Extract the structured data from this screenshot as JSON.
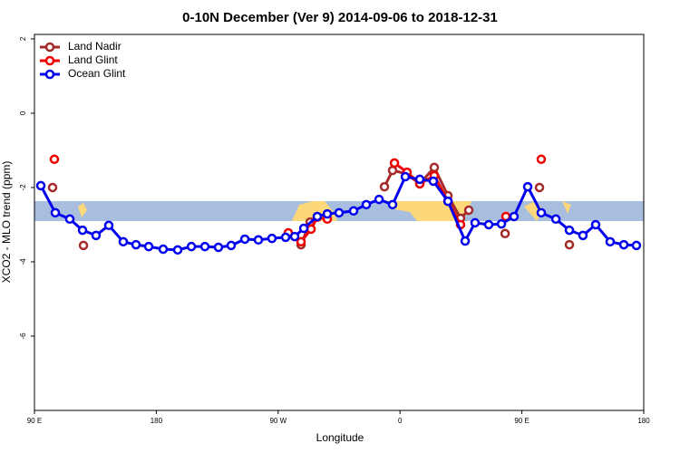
{
  "chart_data": {
    "type": "line",
    "title": "0-10N December (Ver 9)   2014-09-06 to 2018-12-31",
    "xlabel": "Longitude",
    "ylabel": "XCO2 - MLO trend (ppm)",
    "xlim": [
      90,
      540
    ],
    "ylim": [
      -8,
      2.12
    ],
    "xticks": [
      {
        "value": 90,
        "label": "90 E"
      },
      {
        "value": 180,
        "label": "180"
      },
      {
        "value": 270,
        "label": "90 W"
      },
      {
        "value": 360,
        "label": "0"
      },
      {
        "value": 450,
        "label": "90 E"
      },
      {
        "value": 540,
        "label": "180"
      }
    ],
    "yticks": [
      2,
      0,
      -2,
      -4,
      -6
    ],
    "legend": "top-left",
    "series": [
      {
        "name": "Land Nadir",
        "color": "#a52a2a",
        "x": [
          103.4,
          null,
          126.2,
          null,
          286.9,
          293.6,
          null,
          348.5,
          354.5,
          364.6,
          374.6,
          385.3,
          395.4,
          404.7,
          410.8,
          null,
          437.6,
          null,
          463,
          null,
          485.1
        ],
        "values": [
          -2.0,
          null,
          -3.56,
          null,
          -3.54,
          -2.93,
          null,
          -1.98,
          -1.54,
          -1.63,
          -1.9,
          -1.46,
          -2.22,
          -2.83,
          -2.61,
          null,
          -3.24,
          null,
          -2.0,
          null,
          -3.54
        ]
      },
      {
        "name": "Land Glint",
        "color": "#ee0000",
        "x": [
          104.7,
          null,
          277.5,
          286.9,
          294.3,
          298.9,
          306.3,
          null,
          355.9,
          365.2,
          374.6,
          385.3,
          395.4,
          404.7,
          null,
          438.2,
          null,
          464.3
        ],
        "values": [
          -1.24,
          null,
          -3.22,
          -3.46,
          -3.12,
          -2.8,
          -2.85,
          null,
          -1.34,
          -1.59,
          -1.9,
          -1.68,
          -2.37,
          -3.0,
          null,
          -2.78,
          null,
          -1.24
        ]
      },
      {
        "name": "Ocean Glint",
        "color": "#0000ee",
        "x": [
          94.7,
          105.4,
          116.1,
          125.5,
          135.5,
          144.9,
          155.6,
          165,
          174.4,
          185.1,
          195.8,
          205.9,
          215.9,
          225.9,
          235.3,
          245.4,
          255.4,
          265.4,
          275.5,
          282.2,
          288.9,
          298.9,
          306.3,
          315,
          325.7,
          335.1,
          344.5,
          354.5,
          363.9,
          374.6,
          384.6,
          395.4,
          408.1,
          415.4,
          425.5,
          434.9,
          444.2,
          454.3,
          464.3,
          475.1,
          485.1,
          495.1,
          504.5,
          515.2,
          525.3,
          534.6
        ],
        "values": [
          -1.95,
          -2.68,
          -2.85,
          -3.15,
          -3.29,
          -3.02,
          -3.46,
          -3.54,
          -3.59,
          -3.66,
          -3.68,
          -3.59,
          -3.59,
          -3.61,
          -3.56,
          -3.39,
          -3.41,
          -3.37,
          -3.34,
          -3.32,
          -3.1,
          -2.78,
          -2.71,
          -2.68,
          -2.63,
          -2.46,
          -2.32,
          -2.46,
          -1.71,
          -1.78,
          -1.83,
          -2.37,
          -3.44,
          -2.95,
          -3.0,
          -2.98,
          -2.78,
          -1.98,
          -2.68,
          -2.85,
          -3.15,
          -3.29,
          -3.0,
          -3.46,
          -3.54,
          -3.56
        ]
      }
    ]
  }
}
